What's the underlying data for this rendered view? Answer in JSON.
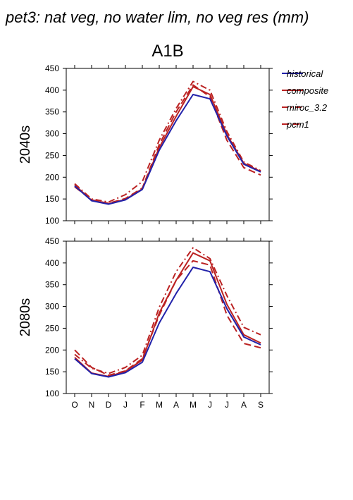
{
  "figure": {
    "title": "pet3: nat veg, no water lim, no veg res (mm)",
    "scenario": "A1B"
  },
  "colors": {
    "historical": "#2222aa",
    "future": "#bb2222",
    "axis": "#000000"
  },
  "legend": {
    "placement": "right",
    "entries": [
      {
        "label": "historical",
        "style": "solid",
        "color": "#2222aa"
      },
      {
        "label": "composite",
        "style": "solid",
        "color": "#bb2222"
      },
      {
        "label": "miroc_3.2",
        "style": "dash-dot",
        "color": "#bb2222"
      },
      {
        "label": "pcm1",
        "style": "dashed",
        "color": "#bb2222"
      }
    ]
  },
  "chart_data": [
    {
      "type": "line",
      "row_label": "2040s",
      "categories": [
        "O",
        "N",
        "D",
        "J",
        "F",
        "M",
        "A",
        "M",
        "J",
        "J",
        "A",
        "S"
      ],
      "ylim": [
        100,
        450
      ],
      "yticks": [
        100,
        150,
        200,
        250,
        300,
        350,
        400,
        450
      ],
      "grid": false,
      "series": [
        {
          "name": "historical",
          "style": "solid",
          "values": [
            180,
            146,
            138,
            148,
            172,
            262,
            330,
            390,
            380,
            295,
            230,
            212
          ]
        },
        {
          "name": "composite",
          "style": "solid",
          "values": [
            182,
            147,
            139,
            149,
            173,
            268,
            340,
            408,
            390,
            298,
            232,
            213
          ]
        },
        {
          "name": "miroc_3.2",
          "style": "dash-dot",
          "values": [
            185,
            150,
            143,
            160,
            190,
            285,
            358,
            420,
            400,
            305,
            235,
            215
          ]
        },
        {
          "name": "pcm1",
          "style": "dashed",
          "values": [
            178,
            148,
            140,
            151,
            175,
            275,
            350,
            412,
            385,
            285,
            222,
            205
          ]
        }
      ]
    },
    {
      "type": "line",
      "row_label": "2080s",
      "categories": [
        "O",
        "N",
        "D",
        "J",
        "F",
        "M",
        "A",
        "M",
        "J",
        "J",
        "A",
        "S"
      ],
      "ylim": [
        100,
        450
      ],
      "yticks": [
        100,
        150,
        200,
        250,
        300,
        350,
        400,
        450
      ],
      "grid": false,
      "series": [
        {
          "name": "historical",
          "style": "solid",
          "values": [
            180,
            146,
            138,
            148,
            172,
            262,
            330,
            390,
            380,
            295,
            230,
            212
          ]
        },
        {
          "name": "composite",
          "style": "solid",
          "values": [
            183,
            147,
            139,
            151,
            177,
            285,
            360,
            423,
            405,
            305,
            235,
            216
          ]
        },
        {
          "name": "miroc_3.2",
          "style": "dash-dot",
          "values": [
            190,
            158,
            146,
            160,
            188,
            298,
            380,
            435,
            410,
            325,
            252,
            235
          ]
        },
        {
          "name": "pcm1",
          "style": "dashed",
          "values": [
            200,
            160,
            142,
            152,
            180,
            280,
            360,
            405,
            395,
            280,
            215,
            205
          ]
        }
      ]
    }
  ]
}
